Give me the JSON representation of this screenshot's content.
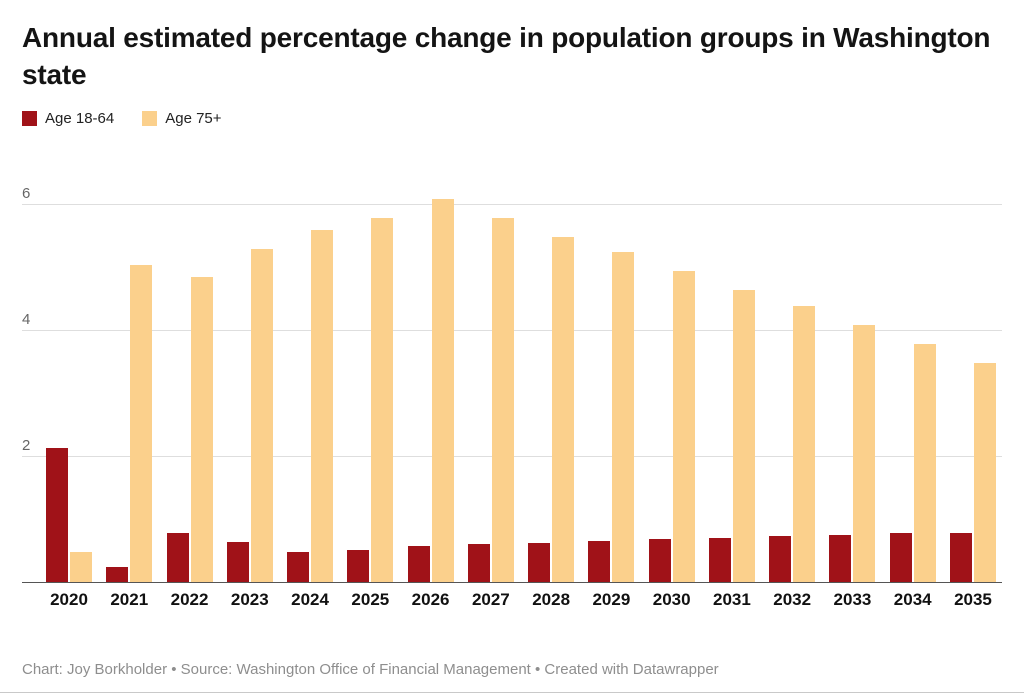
{
  "header": {
    "title": "Annual estimated percentage change in population groups in Washington state"
  },
  "legend": {
    "items": [
      {
        "label": "Age 18-64",
        "color": "#a01218"
      },
      {
        "label": "Age 75+",
        "color": "#fbd08c"
      }
    ]
  },
  "footer": {
    "caption": "Chart: Joy Borkholder • Source: Washington Office of Financial Management • Created with Datawrapper"
  },
  "chart_data": {
    "type": "bar",
    "title": "Annual estimated percentage change in population groups in Washington state",
    "categories": [
      "2020",
      "2021",
      "2022",
      "2023",
      "2024",
      "2025",
      "2026",
      "2027",
      "2028",
      "2029",
      "2030",
      "2031",
      "2032",
      "2033",
      "2034",
      "2035"
    ],
    "series": [
      {
        "name": "Age 18-64",
        "color": "#a01218",
        "values": [
          2.15,
          0.25,
          0.8,
          0.65,
          0.5,
          0.52,
          0.58,
          0.62,
          0.63,
          0.66,
          0.7,
          0.72,
          0.74,
          0.76,
          0.79,
          0.79
        ]
      },
      {
        "name": "Age 75+",
        "color": "#fbd08c",
        "values": [
          0.5,
          5.05,
          4.85,
          5.3,
          5.6,
          5.8,
          6.1,
          5.8,
          5.5,
          5.25,
          4.95,
          4.65,
          4.4,
          4.1,
          3.8,
          3.5
        ]
      }
    ],
    "xlabel": "",
    "ylabel": "",
    "yticks": [
      2,
      4,
      6
    ],
    "ylim": [
      0,
      6.35
    ],
    "grid": true,
    "legend_position": "top-left"
  }
}
